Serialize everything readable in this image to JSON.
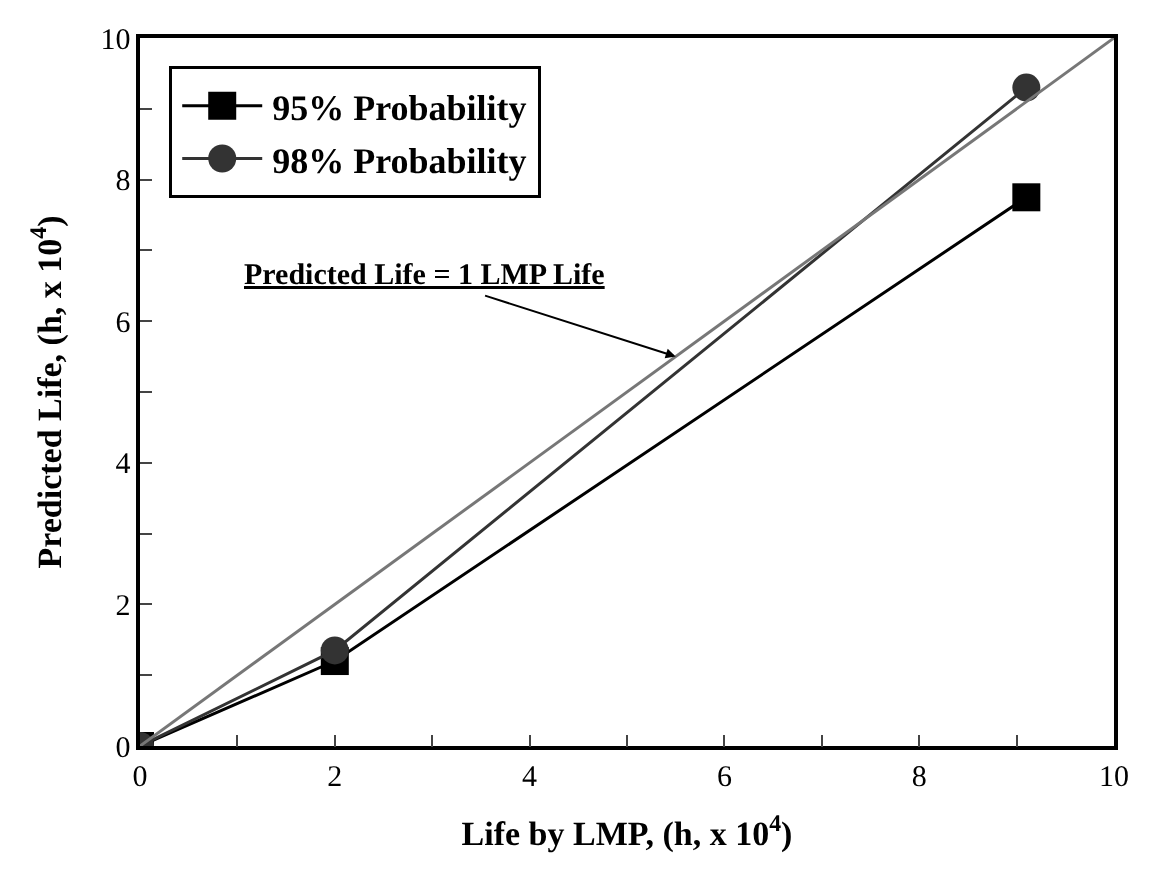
{
  "chart_data": {
    "type": "line",
    "xlabel": "Life by LMP, (h, x 10$^{4}$)",
    "ylabel": "Predicted Life, (h, x 10$^{4}$)",
    "xlim": [
      0,
      10
    ],
    "ylim": [
      0,
      10
    ],
    "xticks": [
      0,
      {
        "value": 1,
        "label": null
      },
      2,
      {
        "value": 3,
        "label": null
      },
      4,
      {
        "value": 5,
        "label": null
      },
      6,
      {
        "value": 7,
        "label": null
      },
      8,
      {
        "value": 9,
        "label": null
      },
      10
    ],
    "yticks": [
      0,
      {
        "value": 1,
        "label": null
      },
      2,
      {
        "value": 3,
        "label": null
      },
      4,
      {
        "value": 5,
        "label": null
      },
      6,
      {
        "value": 7,
        "label": null
      },
      8,
      {
        "value": 9,
        "label": null
      },
      10
    ],
    "legend": "top left",
    "series": [
      {
        "name": "95% Probability",
        "color": "#000000",
        "marker": "square",
        "x": [
          0,
          2,
          9.1
        ],
        "values": [
          0,
          1.2,
          7.75
        ]
      },
      {
        "name": "98% Probability",
        "color": "#333333",
        "marker": "circle",
        "x": [
          0,
          2,
          9.1
        ],
        "values": [
          0,
          1.35,
          9.3
        ]
      },
      {
        "color": "#777777",
        "marker": "none",
        "x": [
          0,
          10
        ],
        "values": [
          0,
          10
        ]
      }
    ],
    "annotations": [
      {
        "text": "Predicted Life = 1 LMP Life",
        "x": 5.5,
        "y": 5.5
      }
    ]
  }
}
